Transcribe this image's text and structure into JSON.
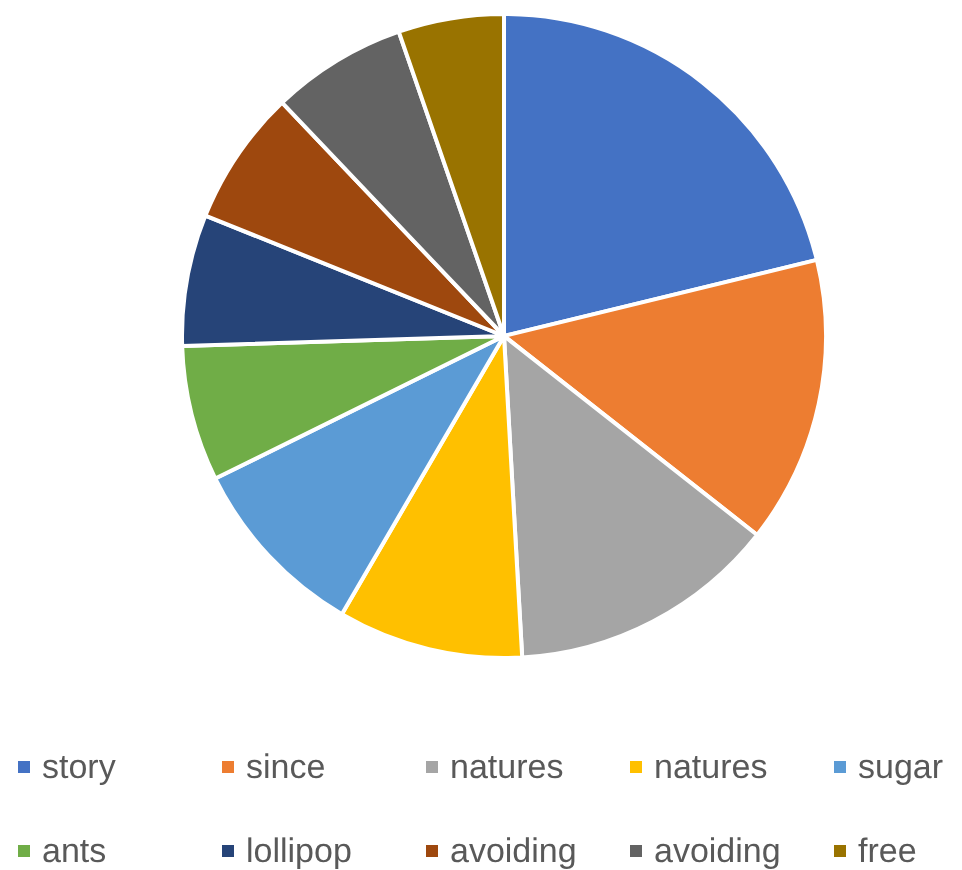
{
  "chart_data": {
    "type": "pie",
    "legend": "bottom",
    "categories": [
      "story",
      "since",
      "natures",
      "natures",
      "sugar",
      "ants",
      "lollipop",
      "avoiding",
      "avoiding",
      "free"
    ],
    "values": [
      21.2,
      14.4,
      13.5,
      9.3,
      9.3,
      6.8,
      6.6,
      6.8,
      6.8,
      5.3
    ],
    "colors": [
      "#4472c4",
      "#ed7d31",
      "#a5a5a5",
      "#ffc000",
      "#5b9bd5",
      "#70ad47",
      "#264478",
      "#9e480e",
      "#636363",
      "#997300"
    ]
  }
}
